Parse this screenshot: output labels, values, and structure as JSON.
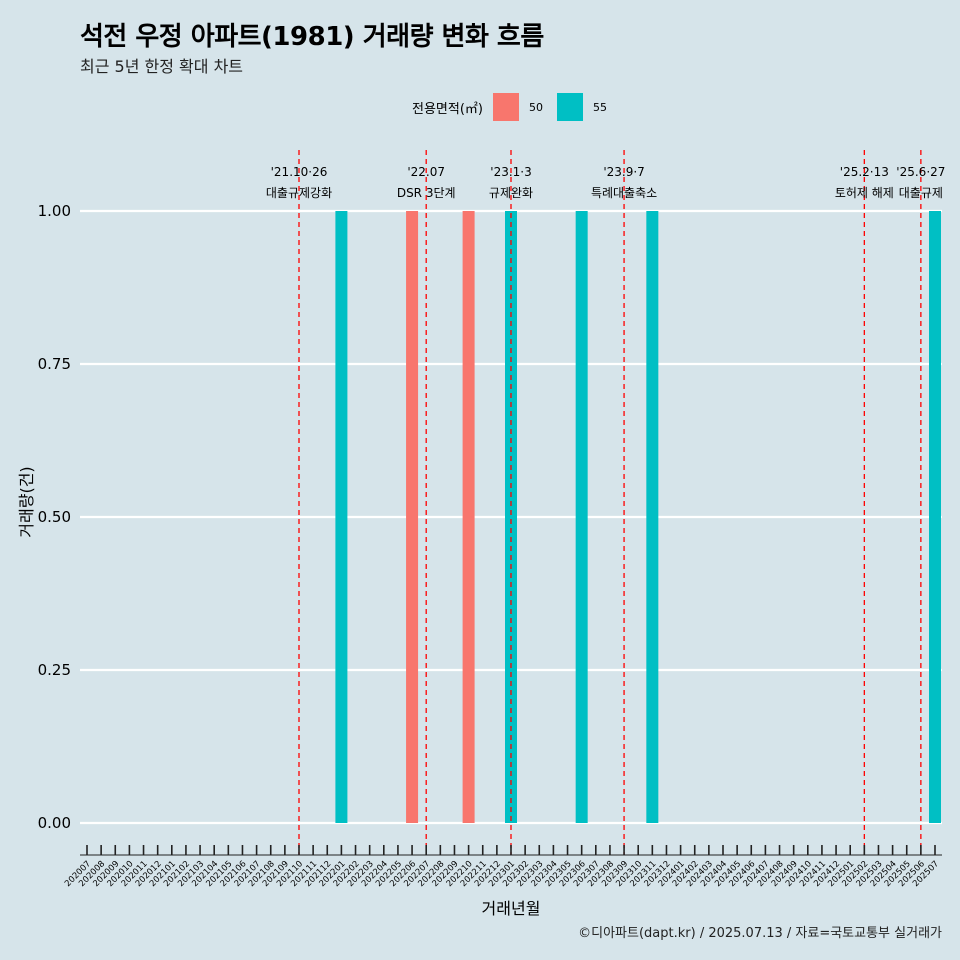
{
  "title": "석전 우정 아파트(1981) 거래량 변화 흐름",
  "subtitle": "최근 5년 한정 확대 차트",
  "caption": "©디아파트(dapt.kr) / 2025.07.13 / 자료=국토교통부 실거래가",
  "colors": {
    "s50": "#f8766d",
    "s55": "#00bfc4",
    "background": "#d6e4ea",
    "grid": "#ffffff",
    "vline": "#ff0000"
  },
  "chart_data": {
    "type": "bar",
    "xlabel": "거래년월",
    "ylabel": "거래량(건)",
    "ylim": [
      0,
      1
    ],
    "yticks": [
      "0.00",
      "0.25",
      "0.50",
      "0.75",
      "1.00"
    ],
    "legend": {
      "title": "전용면적(㎡)",
      "position": "top",
      "entries": [
        "50",
        "55"
      ]
    },
    "categories": [
      "202007",
      "202008",
      "202009",
      "202010",
      "202011",
      "202012",
      "202101",
      "202102",
      "202103",
      "202104",
      "202105",
      "202106",
      "202107",
      "202108",
      "202109",
      "202110",
      "202111",
      "202112",
      "202201",
      "202202",
      "202203",
      "202204",
      "202205",
      "202206",
      "202207",
      "202208",
      "202209",
      "202210",
      "202211",
      "202212",
      "202301",
      "202302",
      "202303",
      "202304",
      "202305",
      "202306",
      "202307",
      "202308",
      "202309",
      "202310",
      "202311",
      "202312",
      "202401",
      "202402",
      "202403",
      "202404",
      "202405",
      "202406",
      "202407",
      "202408",
      "202409",
      "202410",
      "202411",
      "202412",
      "202501",
      "202502",
      "202503",
      "202504",
      "202505",
      "202506",
      "202507"
    ],
    "series": [
      {
        "name": "50",
        "color": "#f8766d",
        "points": [
          {
            "x": "202206",
            "y": 1
          },
          {
            "x": "202210",
            "y": 1
          }
        ]
      },
      {
        "name": "55",
        "color": "#00bfc4",
        "points": [
          {
            "x": "202201",
            "y": 1
          },
          {
            "x": "202301",
            "y": 1
          },
          {
            "x": "202306",
            "y": 1
          },
          {
            "x": "202311",
            "y": 1
          },
          {
            "x": "202507",
            "y": 1
          }
        ]
      }
    ],
    "annotations": [
      {
        "x": "202110",
        "date": "'21.10·26",
        "label": "대출규제강화"
      },
      {
        "x": "202207",
        "date": "'22.07",
        "label": "DSR 3단계"
      },
      {
        "x": "202301",
        "date": "'23.1·3",
        "label": "규제완화"
      },
      {
        "x": "202309",
        "date": "'23.9·7",
        "label": "특례대출축소"
      },
      {
        "x": "202502",
        "date": "'25.2·13",
        "label": "토허제 해제"
      },
      {
        "x": "202506",
        "date": "'25.6·27",
        "label": "대출규제"
      }
    ]
  }
}
